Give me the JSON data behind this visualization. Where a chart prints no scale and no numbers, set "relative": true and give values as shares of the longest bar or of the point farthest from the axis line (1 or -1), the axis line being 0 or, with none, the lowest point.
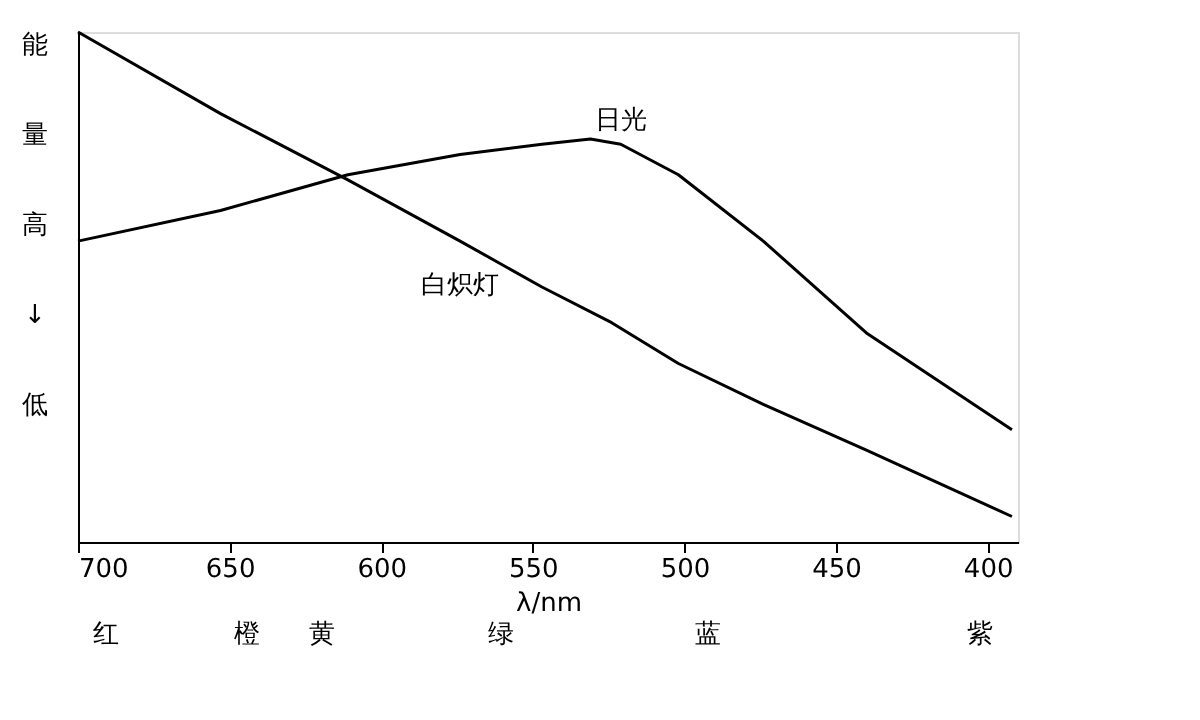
{
  "chart_data": {
    "type": "line",
    "relative": true,
    "xlabel": "λ/nm",
    "ylabel": "能量高↓低",
    "tick_labels": "x",
    "grid": false,
    "marker": "none",
    "line_style": "solid",
    "xlim": [
      700,
      390
    ],
    "xticks": [
      700,
      650,
      600,
      550,
      500,
      450,
      400
    ],
    "series": [
      {
        "name": "日光",
        "color": "#000000",
        "x": [
          700,
          653,
          611,
          574,
          547,
          531,
          521,
          502,
          474,
          440,
          392
        ],
        "values": [
          0.59,
          0.65,
          0.72,
          0.76,
          0.78,
          0.79,
          0.78,
          0.72,
          0.59,
          0.41,
          0.22
        ]
      },
      {
        "name": "白炽灯",
        "color": "#000000",
        "x": [
          700,
          653,
          611,
          574,
          547,
          524,
          502,
          474,
          440,
          392
        ],
        "values": [
          1,
          0.84,
          0.71,
          0.59,
          0.5,
          0.43,
          0.35,
          0.27,
          0.18,
          0.05
        ]
      }
    ],
    "annotations": [
      "红",
      "橙",
      "黄",
      "绿",
      "蓝",
      "紫"
    ]
  }
}
